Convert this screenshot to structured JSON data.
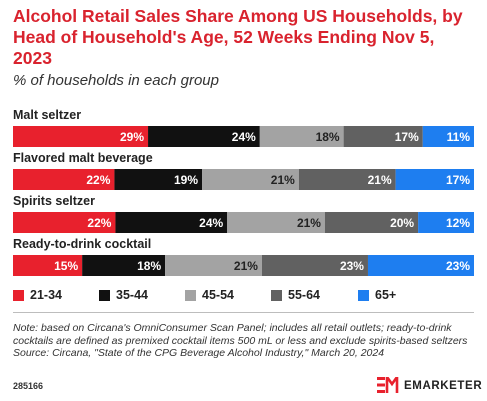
{
  "header": {
    "title": "Alcohol Retail Sales Share Among US Households, by Head of Household's Age, 52 Weeks Ending Nov 5, 2023",
    "subtitle": "% of households in each group"
  },
  "chart_data": {
    "type": "bar",
    "orientation": "horizontal",
    "stacked": true,
    "categories": [
      "Malt seltzer",
      "Flavored malt beverage",
      "Spirits seltzer",
      "Ready-to-drink cocktail"
    ],
    "series": [
      {
        "name": "21-34",
        "color": "#e8212d",
        "values": [
          29,
          22,
          22,
          15
        ],
        "labels": [
          "29%",
          "22%",
          "22%",
          "15%"
        ]
      },
      {
        "name": "35-44",
        "color": "#111111",
        "values": [
          24,
          19,
          24,
          18
        ],
        "labels": [
          "24%",
          "19%",
          "24%",
          "18%"
        ]
      },
      {
        "name": "45-54",
        "color": "#a3a3a3",
        "values": [
          18,
          21,
          21,
          21
        ],
        "labels": [
          "18%",
          "21%",
          "21%",
          "21%"
        ]
      },
      {
        "name": "55-64",
        "color": "#616161",
        "values": [
          17,
          21,
          20,
          23
        ],
        "labels": [
          "17%",
          "21%",
          "20%",
          "23%"
        ]
      },
      {
        "name": "65+",
        "color": "#1e7ef0",
        "values": [
          11,
          17,
          12,
          23
        ],
        "labels": [
          "11%",
          "17%",
          "12%",
          "23%"
        ]
      }
    ],
    "legend_position": "bottom",
    "grid": false
  },
  "note": "Note: based on Circana's OmniConsumer Scan Panel; includes all retail outlets; ready-to-drink cocktails are defined as premixed cocktail items 500 mL or less and exclude spirits-based seltzers",
  "source": "Source: Circana, \"State of the CPG Beverage Alcohol Industry,\" March 20, 2024",
  "footer": {
    "chart_id": "285166",
    "brand": "EMARKETER"
  },
  "colors": {
    "title": "#d9232e",
    "brand_accent": "#e8212d"
  }
}
